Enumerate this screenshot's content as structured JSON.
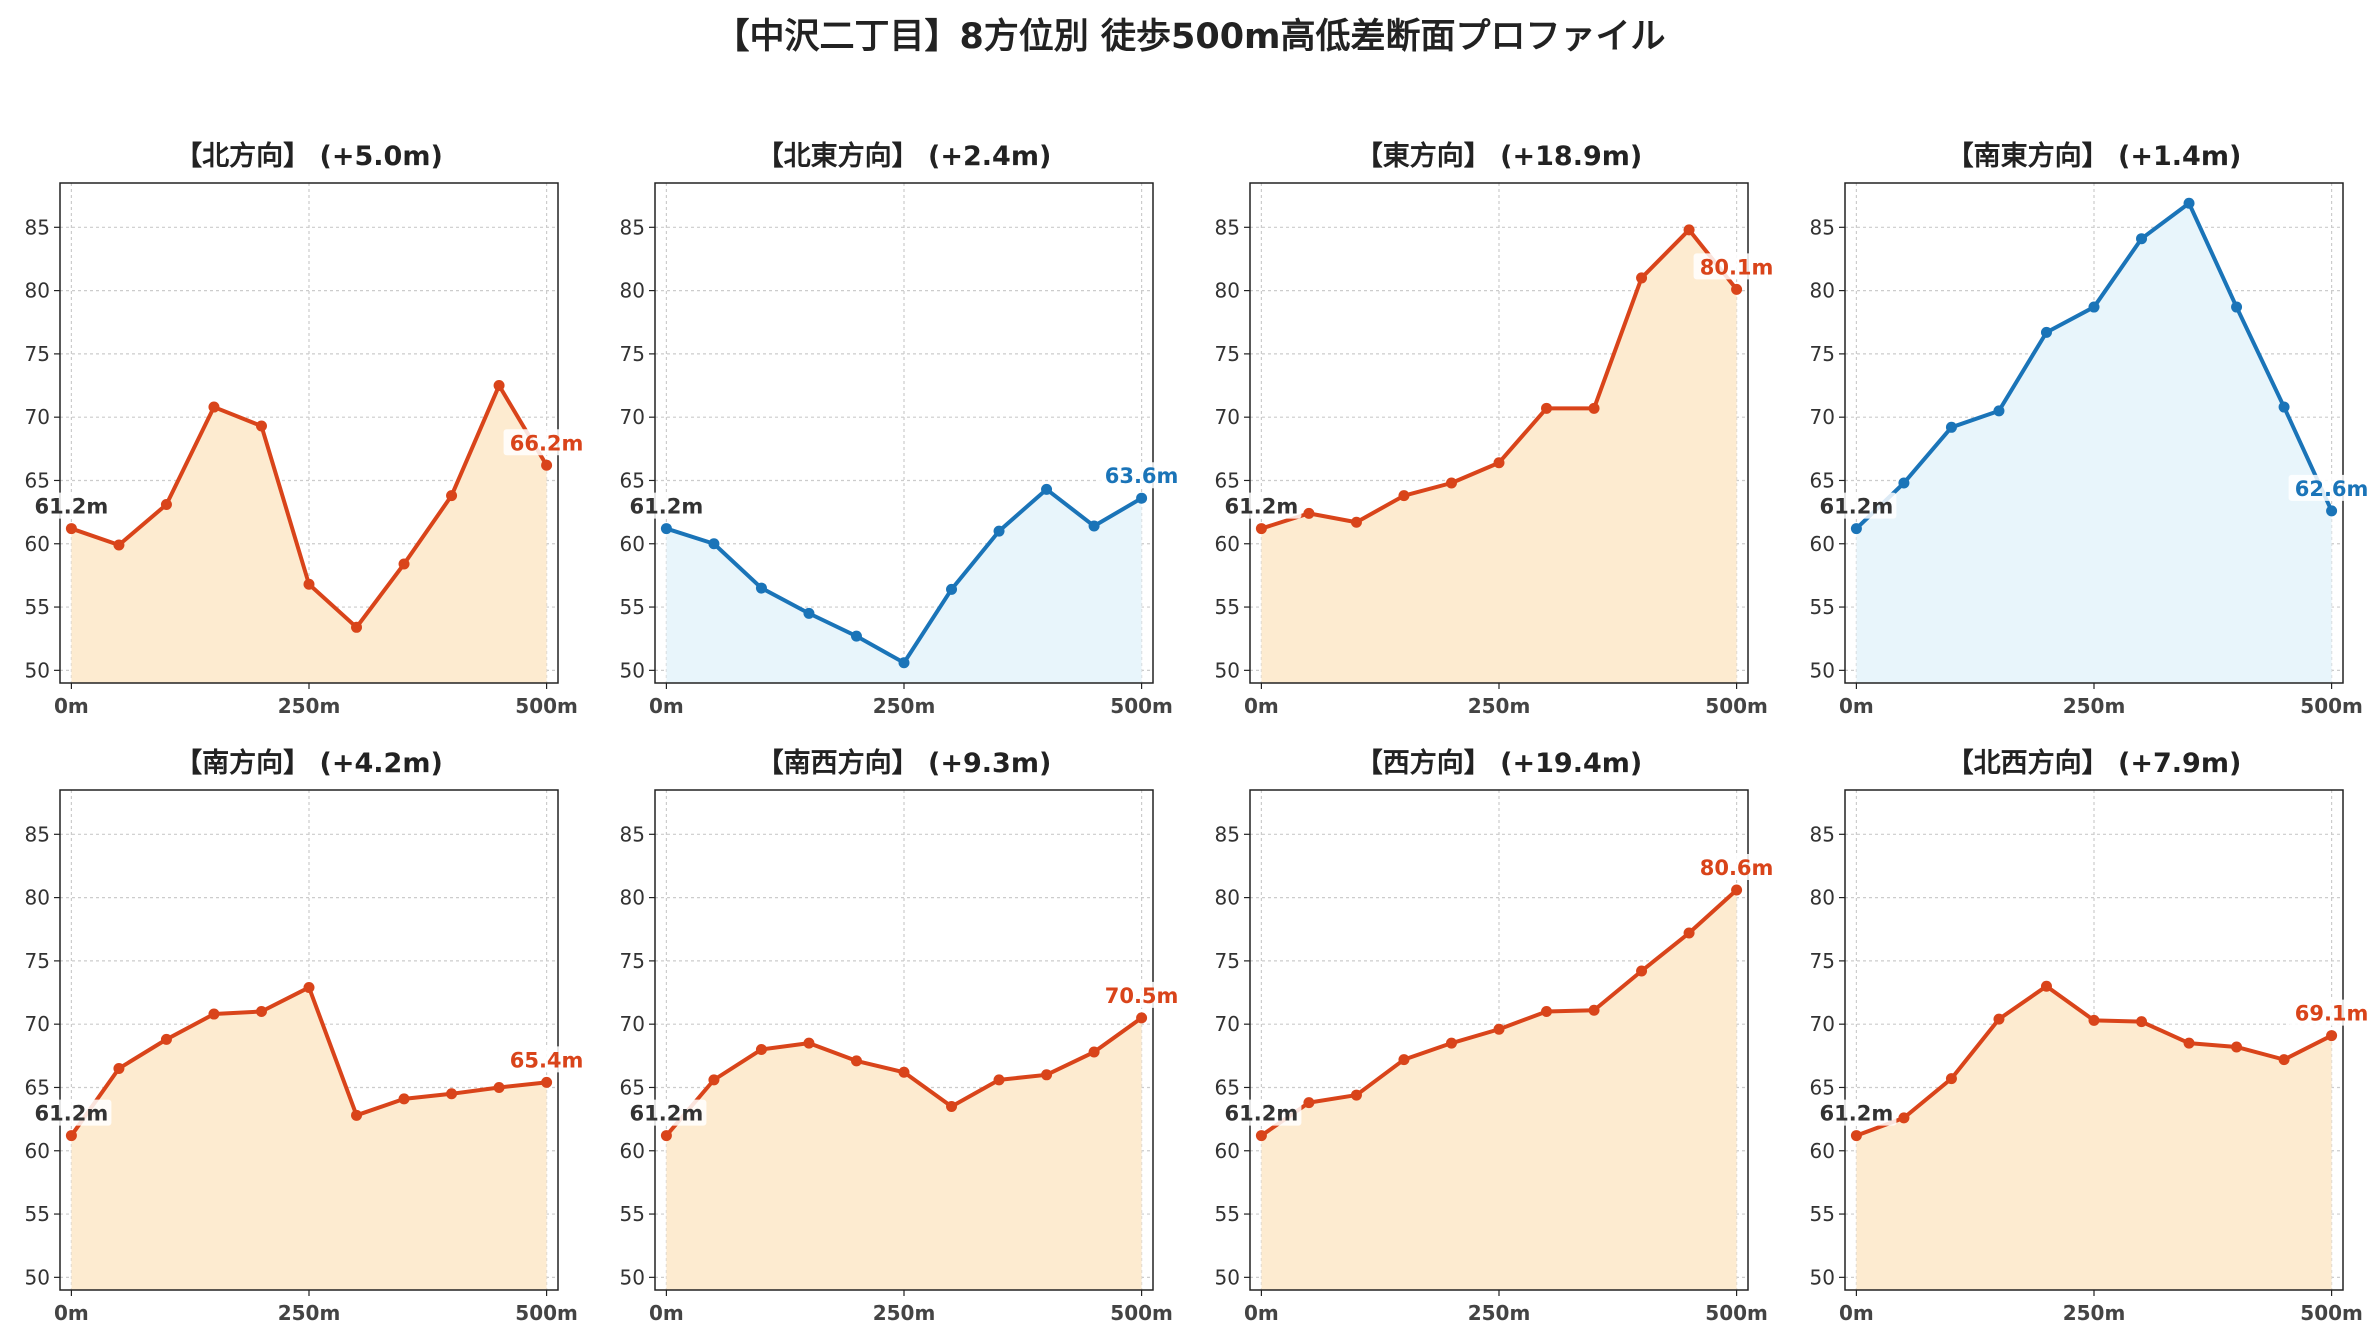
{
  "title": "【中沢二丁目】8方位別 徒歩500m高低差断面プロファイル",
  "colors": {
    "up": "#d9441a",
    "up_fill": "#fdebd0",
    "down": "#1a74b8",
    "down_fill": "#e8f5fb",
    "start_label": "#333333"
  },
  "chart_data": [
    {
      "type": "area",
      "title": "【北方向】 (+5.0m)",
      "trend": "up",
      "x": [
        0,
        50,
        100,
        150,
        200,
        250,
        300,
        350,
        400,
        450,
        500
      ],
      "y": [
        61.2,
        59.9,
        63.1,
        70.8,
        69.3,
        56.8,
        53.4,
        58.4,
        63.8,
        72.5,
        66.2
      ],
      "start_label": "61.2m",
      "end_label": "66.2m"
    },
    {
      "type": "area",
      "title": "【北東方向】 (+2.4m)",
      "trend": "down",
      "x": [
        0,
        50,
        100,
        150,
        200,
        250,
        300,
        350,
        400,
        450,
        500
      ],
      "y": [
        61.2,
        60.0,
        56.5,
        54.5,
        52.7,
        50.6,
        56.4,
        61.0,
        64.3,
        61.4,
        63.6
      ],
      "start_label": "61.2m",
      "end_label": "63.6m"
    },
    {
      "type": "area",
      "title": "【東方向】 (+18.9m)",
      "trend": "up",
      "x": [
        0,
        50,
        100,
        150,
        200,
        250,
        300,
        350,
        400,
        450,
        500
      ],
      "y": [
        61.2,
        62.4,
        61.7,
        63.8,
        64.8,
        66.4,
        70.7,
        70.7,
        81.0,
        84.8,
        80.1
      ],
      "start_label": "61.2m",
      "end_label": "80.1m"
    },
    {
      "type": "area",
      "title": "【南東方向】 (+1.4m)",
      "trend": "down",
      "x": [
        0,
        50,
        100,
        150,
        200,
        250,
        300,
        350,
        400,
        450,
        500
      ],
      "y": [
        61.2,
        64.8,
        69.2,
        70.5,
        76.7,
        78.7,
        84.1,
        86.9,
        78.7,
        70.8,
        62.6
      ],
      "start_label": "61.2m",
      "end_label": "62.6m"
    },
    {
      "type": "area",
      "title": "【南方向】 (+4.2m)",
      "trend": "up",
      "x": [
        0,
        50,
        100,
        150,
        200,
        250,
        300,
        350,
        400,
        450,
        500
      ],
      "y": [
        61.2,
        66.5,
        68.8,
        70.8,
        71.0,
        72.9,
        62.8,
        64.1,
        64.5,
        65.0,
        65.4
      ],
      "start_label": "61.2m",
      "end_label": "65.4m"
    },
    {
      "type": "area",
      "title": "【南西方向】 (+9.3m)",
      "trend": "up",
      "x": [
        0,
        50,
        100,
        150,
        200,
        250,
        300,
        350,
        400,
        450,
        500
      ],
      "y": [
        61.2,
        65.6,
        68.0,
        68.5,
        67.1,
        66.2,
        63.5,
        65.6,
        66.0,
        67.8,
        70.5
      ],
      "start_label": "61.2m",
      "end_label": "70.5m"
    },
    {
      "type": "area",
      "title": "【西方向】 (+19.4m)",
      "trend": "up",
      "x": [
        0,
        50,
        100,
        150,
        200,
        250,
        300,
        350,
        400,
        450,
        500
      ],
      "y": [
        61.2,
        63.8,
        64.4,
        67.2,
        68.5,
        69.6,
        71.0,
        71.1,
        74.2,
        77.2,
        80.6
      ],
      "start_label": "61.2m",
      "end_label": "80.6m"
    },
    {
      "type": "area",
      "title": "【北西方向】 (+7.9m)",
      "trend": "up",
      "x": [
        0,
        50,
        100,
        150,
        200,
        250,
        300,
        350,
        400,
        450,
        500
      ],
      "y": [
        61.2,
        62.6,
        65.7,
        70.4,
        73.0,
        70.3,
        70.2,
        68.5,
        68.2,
        67.2,
        69.1
      ],
      "start_label": "61.2m",
      "end_label": "69.1m"
    }
  ],
  "axes": {
    "y_ticks": [
      50,
      55,
      60,
      65,
      70,
      75,
      80,
      85
    ],
    "ylim": [
      49,
      88.5
    ],
    "x_ticks": [
      "0m",
      "250m",
      "500m"
    ],
    "xlim": [
      -12,
      512
    ],
    "grid": true
  }
}
